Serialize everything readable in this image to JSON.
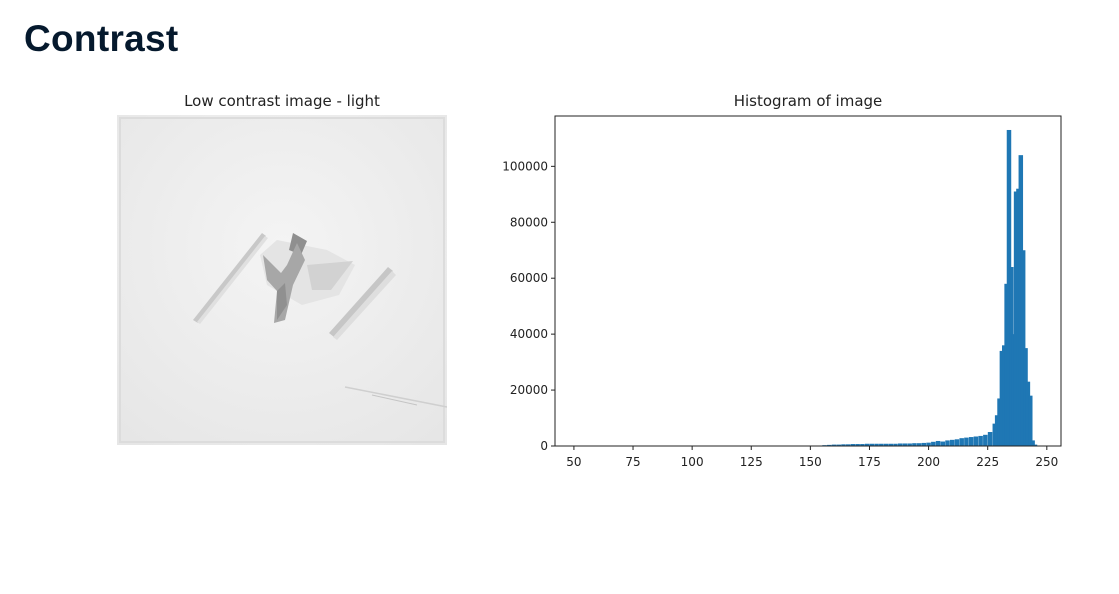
{
  "slide": {
    "title": "Contrast"
  },
  "image_panel": {
    "title": "Low contrast image - light"
  },
  "chart_data": {
    "type": "bar",
    "title": "Histogram of image",
    "xlabel": "",
    "ylabel": "",
    "xlim": [
      42,
      256
    ],
    "ylim": [
      0,
      118000
    ],
    "xticks": [
      50,
      75,
      100,
      125,
      150,
      175,
      200,
      225,
      250
    ],
    "yticks": [
      0,
      20000,
      40000,
      60000,
      80000,
      100000
    ],
    "color": "#1f77b4",
    "x": [
      156,
      158,
      160,
      162,
      164,
      166,
      168,
      170,
      172,
      174,
      176,
      178,
      180,
      182,
      184,
      186,
      188,
      190,
      192,
      194,
      196,
      198,
      200,
      202,
      204,
      206,
      208,
      210,
      212,
      214,
      216,
      218,
      220,
      222,
      224,
      226,
      228,
      229,
      230,
      231,
      232,
      233,
      234,
      235,
      236,
      237,
      238,
      239,
      240,
      241,
      242,
      243,
      244,
      245
    ],
    "values": [
      300,
      400,
      500,
      500,
      600,
      600,
      700,
      700,
      700,
      800,
      800,
      800,
      800,
      800,
      800,
      800,
      900,
      900,
      900,
      1000,
      1000,
      1100,
      1200,
      1500,
      1800,
      1600,
      2000,
      2200,
      2400,
      2800,
      3000,
      3200,
      3400,
      3600,
      4000,
      5000,
      8000,
      11000,
      17000,
      34000,
      36000,
      58000,
      113000,
      64000,
      40000,
      91000,
      92000,
      104000,
      70000,
      35000,
      23000,
      18000,
      2000,
      500
    ],
    "grid": false,
    "legend": false
  }
}
